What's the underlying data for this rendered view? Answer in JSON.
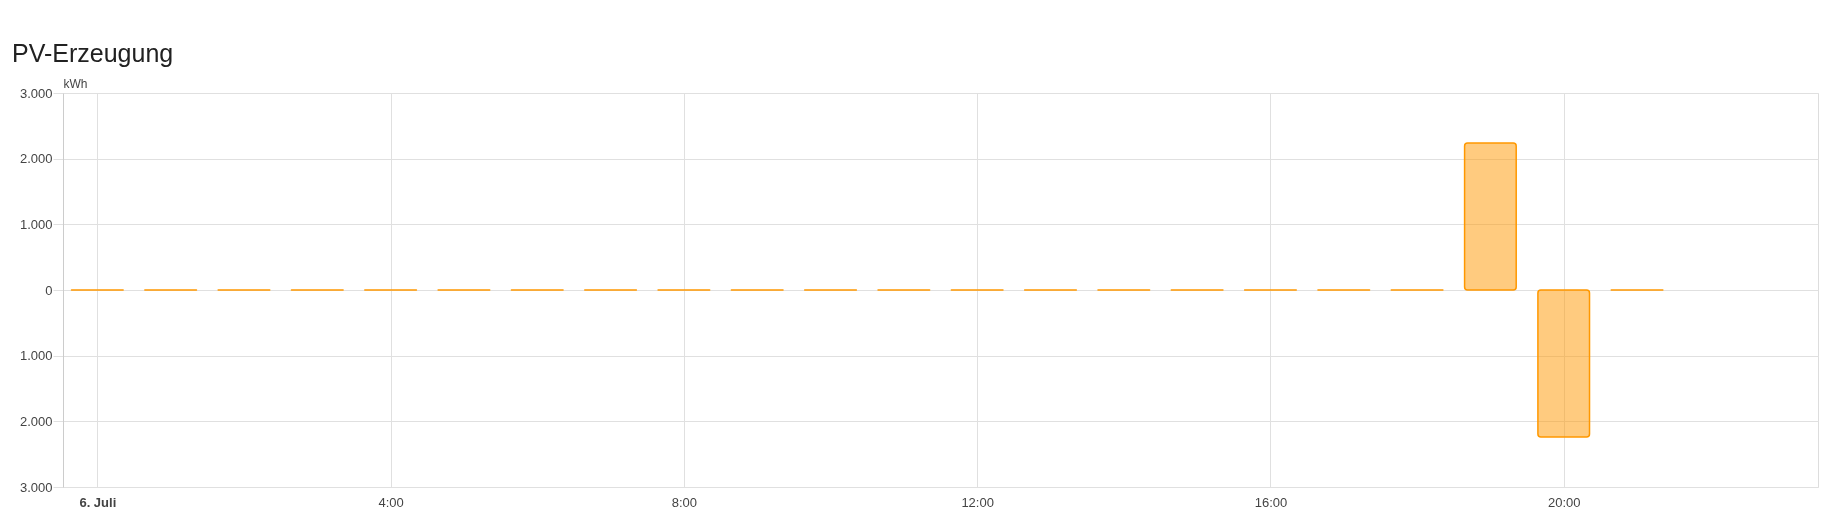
{
  "chart_data": {
    "type": "bar",
    "title": "PV-Erzeugung",
    "ylabel": "kWh",
    "x": [
      0,
      1,
      2,
      3,
      4,
      5,
      6,
      7,
      8,
      9,
      10,
      11,
      12,
      13,
      14,
      15,
      16,
      17,
      18,
      19,
      20,
      21
    ],
    "series": [
      {
        "color": "#ff9800",
        "values": [
          0,
          0,
          0,
          0,
          0,
          0,
          0,
          0,
          0,
          0,
          0,
          0,
          0,
          0,
          0,
          0,
          0,
          0,
          0,
          2240,
          -2240,
          0
        ]
      }
    ],
    "xlim": [
      -0.4,
      23.4
    ],
    "xticks": [
      {
        "value": 0,
        "label": "6. Juli"
      },
      {
        "value": 4,
        "label": "4:00"
      },
      {
        "value": 8,
        "label": "8:00"
      },
      {
        "value": 12,
        "label": "12:00"
      },
      {
        "value": 16,
        "label": "16:00"
      },
      {
        "value": 20,
        "label": "20:00"
      }
    ],
    "ylim": [
      -3000,
      3000
    ],
    "yticks": [
      {
        "value": -3000,
        "label": "3.000"
      },
      {
        "value": -2000,
        "label": "2.000"
      },
      {
        "value": -1000,
        "label": "1.000"
      },
      0,
      {
        "value": 1000,
        "label": "1.000"
      },
      {
        "value": 2000,
        "label": "2.000"
      },
      {
        "value": 3000,
        "label": "3.000"
      }
    ],
    "grid": true
  }
}
